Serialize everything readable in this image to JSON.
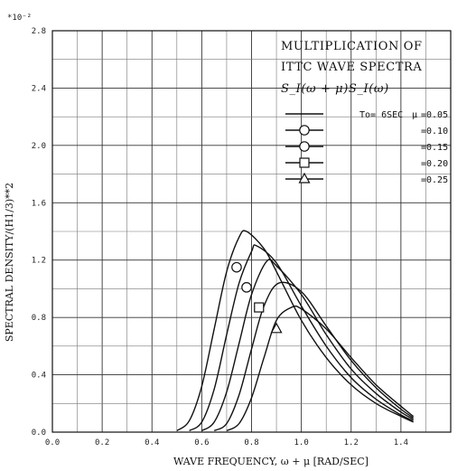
{
  "chart_data": {
    "type": "line",
    "title_lines": [
      "MULTIPLICATION OF",
      "ITTC WAVE SPECTRA"
    ],
    "formula": "S_I(ω + μ)S_I(ω)",
    "xlabel": "WAVE FREQUENCY, ω + μ [RAD/SEC]",
    "ylabel": "SPECTRAL DENSITY/(H1/3)**2",
    "y_multiplier": "*10⁻²",
    "xlim": [
      0.0,
      1.6
    ],
    "ylim": [
      0.0,
      2.8
    ],
    "x_ticks": [
      "0.0",
      "0.2",
      "0.4",
      "0.6",
      "0.8",
      "1.0",
      "1.2",
      "1.4"
    ],
    "y_ticks": [
      "0.0",
      "0.4",
      "0.8",
      "1.2",
      "1.6",
      "2.0",
      "2.4",
      "2.8"
    ],
    "grid": true,
    "legend_position": "top-right",
    "legend_prefix": "To= 6SEC",
    "mu_symbol": "μ",
    "series": [
      {
        "name": "=0.05",
        "marker": "none",
        "peak_x": 0.78,
        "peak_y": 1.4,
        "x": [
          0.5,
          0.55,
          0.6,
          0.65,
          0.7,
          0.75,
          0.78,
          0.85,
          0.9,
          1.0,
          1.1,
          1.2,
          1.3,
          1.4,
          1.45
        ],
        "y": [
          0.01,
          0.08,
          0.32,
          0.72,
          1.12,
          1.36,
          1.4,
          1.28,
          1.12,
          0.78,
          0.52,
          0.33,
          0.2,
          0.11,
          0.07
        ]
      },
      {
        "name": "=0.10",
        "marker": "circle",
        "peak_x": 0.82,
        "peak_y": 1.3,
        "x": [
          0.55,
          0.6,
          0.65,
          0.7,
          0.75,
          0.8,
          0.82,
          0.9,
          1.0,
          1.1,
          1.2,
          1.3,
          1.4,
          1.45
        ],
        "y": [
          0.01,
          0.07,
          0.3,
          0.68,
          1.04,
          1.26,
          1.3,
          1.18,
          0.88,
          0.6,
          0.38,
          0.23,
          0.12,
          0.08
        ]
      },
      {
        "name": "=0.15",
        "marker": "circle",
        "peak_x": 0.86,
        "peak_y": 1.19,
        "x": [
          0.6,
          0.65,
          0.7,
          0.75,
          0.8,
          0.86,
          0.9,
          1.0,
          1.1,
          1.2,
          1.3,
          1.4,
          1.45
        ],
        "y": [
          0.01,
          0.07,
          0.28,
          0.62,
          0.96,
          1.19,
          1.16,
          0.96,
          0.68,
          0.44,
          0.27,
          0.14,
          0.09
        ]
      },
      {
        "name": "=0.20",
        "marker": "square",
        "peak_x": 0.91,
        "peak_y": 1.04,
        "x": [
          0.65,
          0.7,
          0.75,
          0.8,
          0.85,
          0.91,
          1.0,
          1.1,
          1.2,
          1.3,
          1.4,
          1.45
        ],
        "y": [
          0.01,
          0.06,
          0.26,
          0.58,
          0.88,
          1.04,
          0.98,
          0.74,
          0.5,
          0.31,
          0.16,
          0.1
        ]
      },
      {
        "name": "=0.25",
        "marker": "triangle",
        "peak_x": 0.96,
        "peak_y": 0.87,
        "x": [
          0.7,
          0.75,
          0.8,
          0.85,
          0.9,
          0.96,
          1.0,
          1.1,
          1.2,
          1.3,
          1.4,
          1.45
        ],
        "y": [
          0.01,
          0.06,
          0.24,
          0.52,
          0.78,
          0.87,
          0.86,
          0.72,
          0.52,
          0.33,
          0.18,
          0.11
        ]
      }
    ],
    "markers_on_curves": [
      {
        "series": 1,
        "marker": "circle",
        "x": 0.74,
        "y": 1.15
      },
      {
        "series": 2,
        "marker": "circle",
        "x": 0.78,
        "y": 1.01
      },
      {
        "series": 3,
        "marker": "square",
        "x": 0.83,
        "y": 0.87
      },
      {
        "series": 4,
        "marker": "triangle",
        "x": 0.9,
        "y": 0.72
      }
    ]
  }
}
